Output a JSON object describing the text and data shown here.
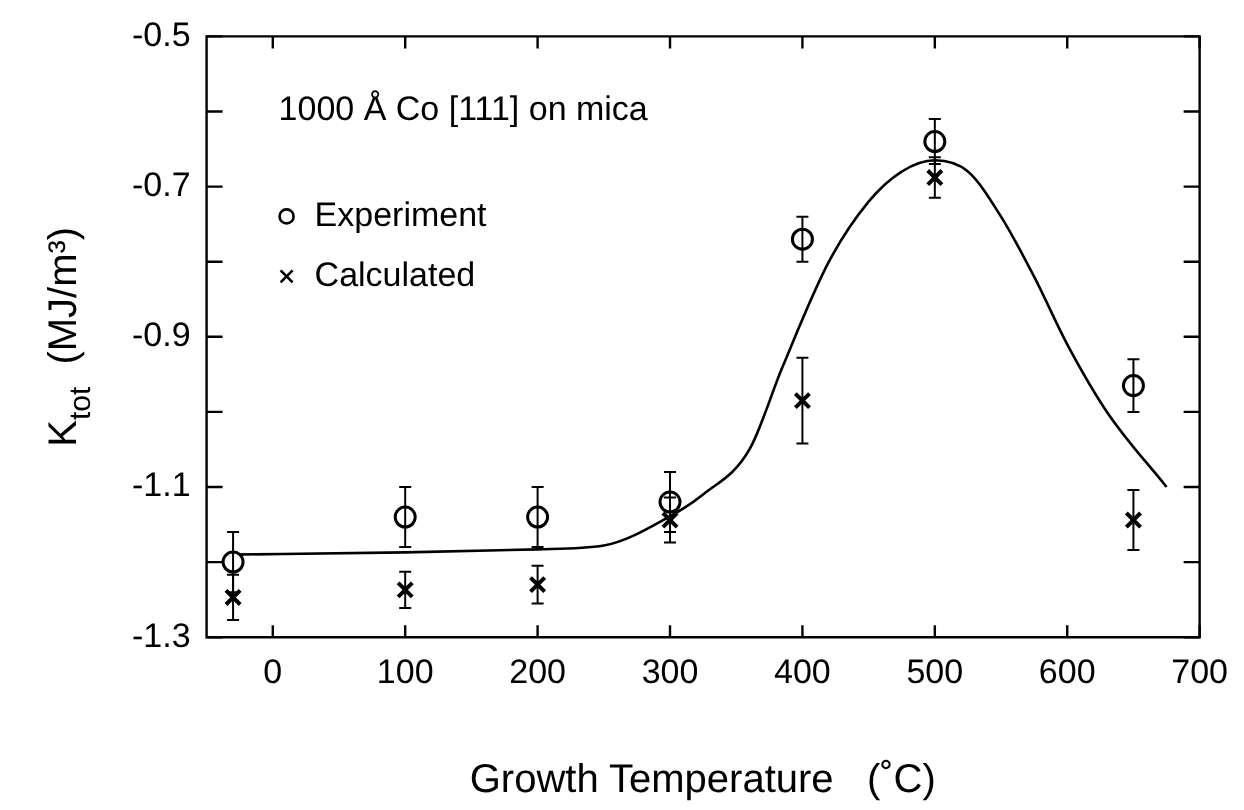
{
  "chart_data": {
    "type": "scatter",
    "xlabel": "Growth Temperature   (˚C)",
    "ylabel": "K$_{tot}$  (MJ/m³)",
    "annotations": [
      "1000 Å Co [111] on mica"
    ],
    "xlim": [
      -50,
      700
    ],
    "xticks": [
      0,
      100,
      200,
      300,
      400,
      500,
      600,
      700
    ],
    "ylim": [
      -1.3,
      -0.5
    ],
    "yticks": [
      -1.3,
      {
        "value": -1.2,
        "label": null
      },
      -1.1,
      {
        "value": -1.0,
        "label": null
      },
      -0.9,
      {
        "value": -0.8,
        "label": null
      },
      -0.7,
      {
        "value": -0.6,
        "label": null
      },
      -0.5
    ],
    "grid": false,
    "legend": "top left",
    "series": [
      {
        "name": "Experiment",
        "marker": "circle",
        "color": "#000000",
        "x": [
          -30,
          100,
          200,
          300,
          400,
          500,
          650
        ],
        "values": [
          -1.2,
          -1.14,
          -1.14,
          -1.12,
          -0.77,
          -0.64,
          -0.965
        ],
        "errors": [
          0.04,
          0.04,
          0.04,
          0.04,
          0.03,
          0.03,
          0.035
        ]
      },
      {
        "name": "Calculated",
        "marker": "cross",
        "color": "#000000",
        "x": [
          -30,
          100,
          200,
          300,
          400,
          500,
          650
        ],
        "values": [
          -1.247,
          -1.237,
          -1.23,
          -1.144,
          -0.985,
          -0.688,
          -1.144
        ],
        "errors": [
          0.03,
          0.024,
          0.025,
          0.03,
          0.057,
          0.027,
          0.04
        ]
      },
      {
        "type": "line",
        "marker": "none",
        "line_style": "solid",
        "color": "#000000",
        "x": [
          -30,
          100,
          200,
          250,
          300,
          325,
          360,
          385,
          420,
          450,
          475,
          500,
          525,
          550,
          575,
          600,
          630,
          675
        ],
        "values": [
          -1.19,
          -1.187,
          -1.183,
          -1.178,
          -1.139,
          -1.11,
          -1.05,
          -0.94,
          -0.8,
          -0.72,
          -0.68,
          -0.665,
          -0.68,
          -0.74,
          -0.82,
          -0.91,
          -1.0,
          -1.1
        ]
      }
    ]
  }
}
